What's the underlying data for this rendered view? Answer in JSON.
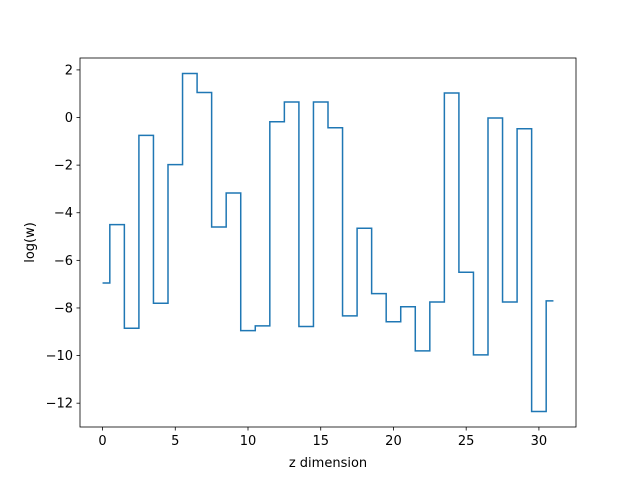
{
  "chart_data": {
    "type": "line",
    "drawstyle": "steps-mid",
    "title": "",
    "xlabel": "z dimension",
    "ylabel": "log(w)",
    "xlim": [
      -1.55,
      32.55
    ],
    "ylim": [
      -13.0,
      2.5
    ],
    "xticks": [
      0,
      5,
      10,
      15,
      20,
      25,
      30
    ],
    "yticks": [
      -12,
      -10,
      -8,
      -6,
      -4,
      -2,
      0,
      2
    ],
    "grid": false,
    "legend": "none",
    "series": [
      {
        "color": "#1f77b4",
        "x": [
          0,
          1,
          2,
          3,
          4,
          5,
          6,
          7,
          8,
          9,
          10,
          11,
          12,
          13,
          14,
          15,
          16,
          17,
          18,
          19,
          20,
          21,
          22,
          23,
          24,
          25,
          26,
          27,
          28,
          29,
          30,
          31
        ],
        "y": [
          -6.95,
          -4.5,
          -8.85,
          -0.75,
          -7.8,
          -1.98,
          1.85,
          1.05,
          -4.6,
          -3.17,
          -8.95,
          -8.75,
          -0.18,
          0.65,
          -8.78,
          0.65,
          -0.43,
          -8.33,
          -4.65,
          -7.4,
          -8.58,
          -7.95,
          -9.8,
          -7.75,
          1.03,
          -6.5,
          -9.97,
          -0.02,
          -7.75,
          -0.47,
          -12.35,
          -7.7
        ]
      }
    ]
  }
}
